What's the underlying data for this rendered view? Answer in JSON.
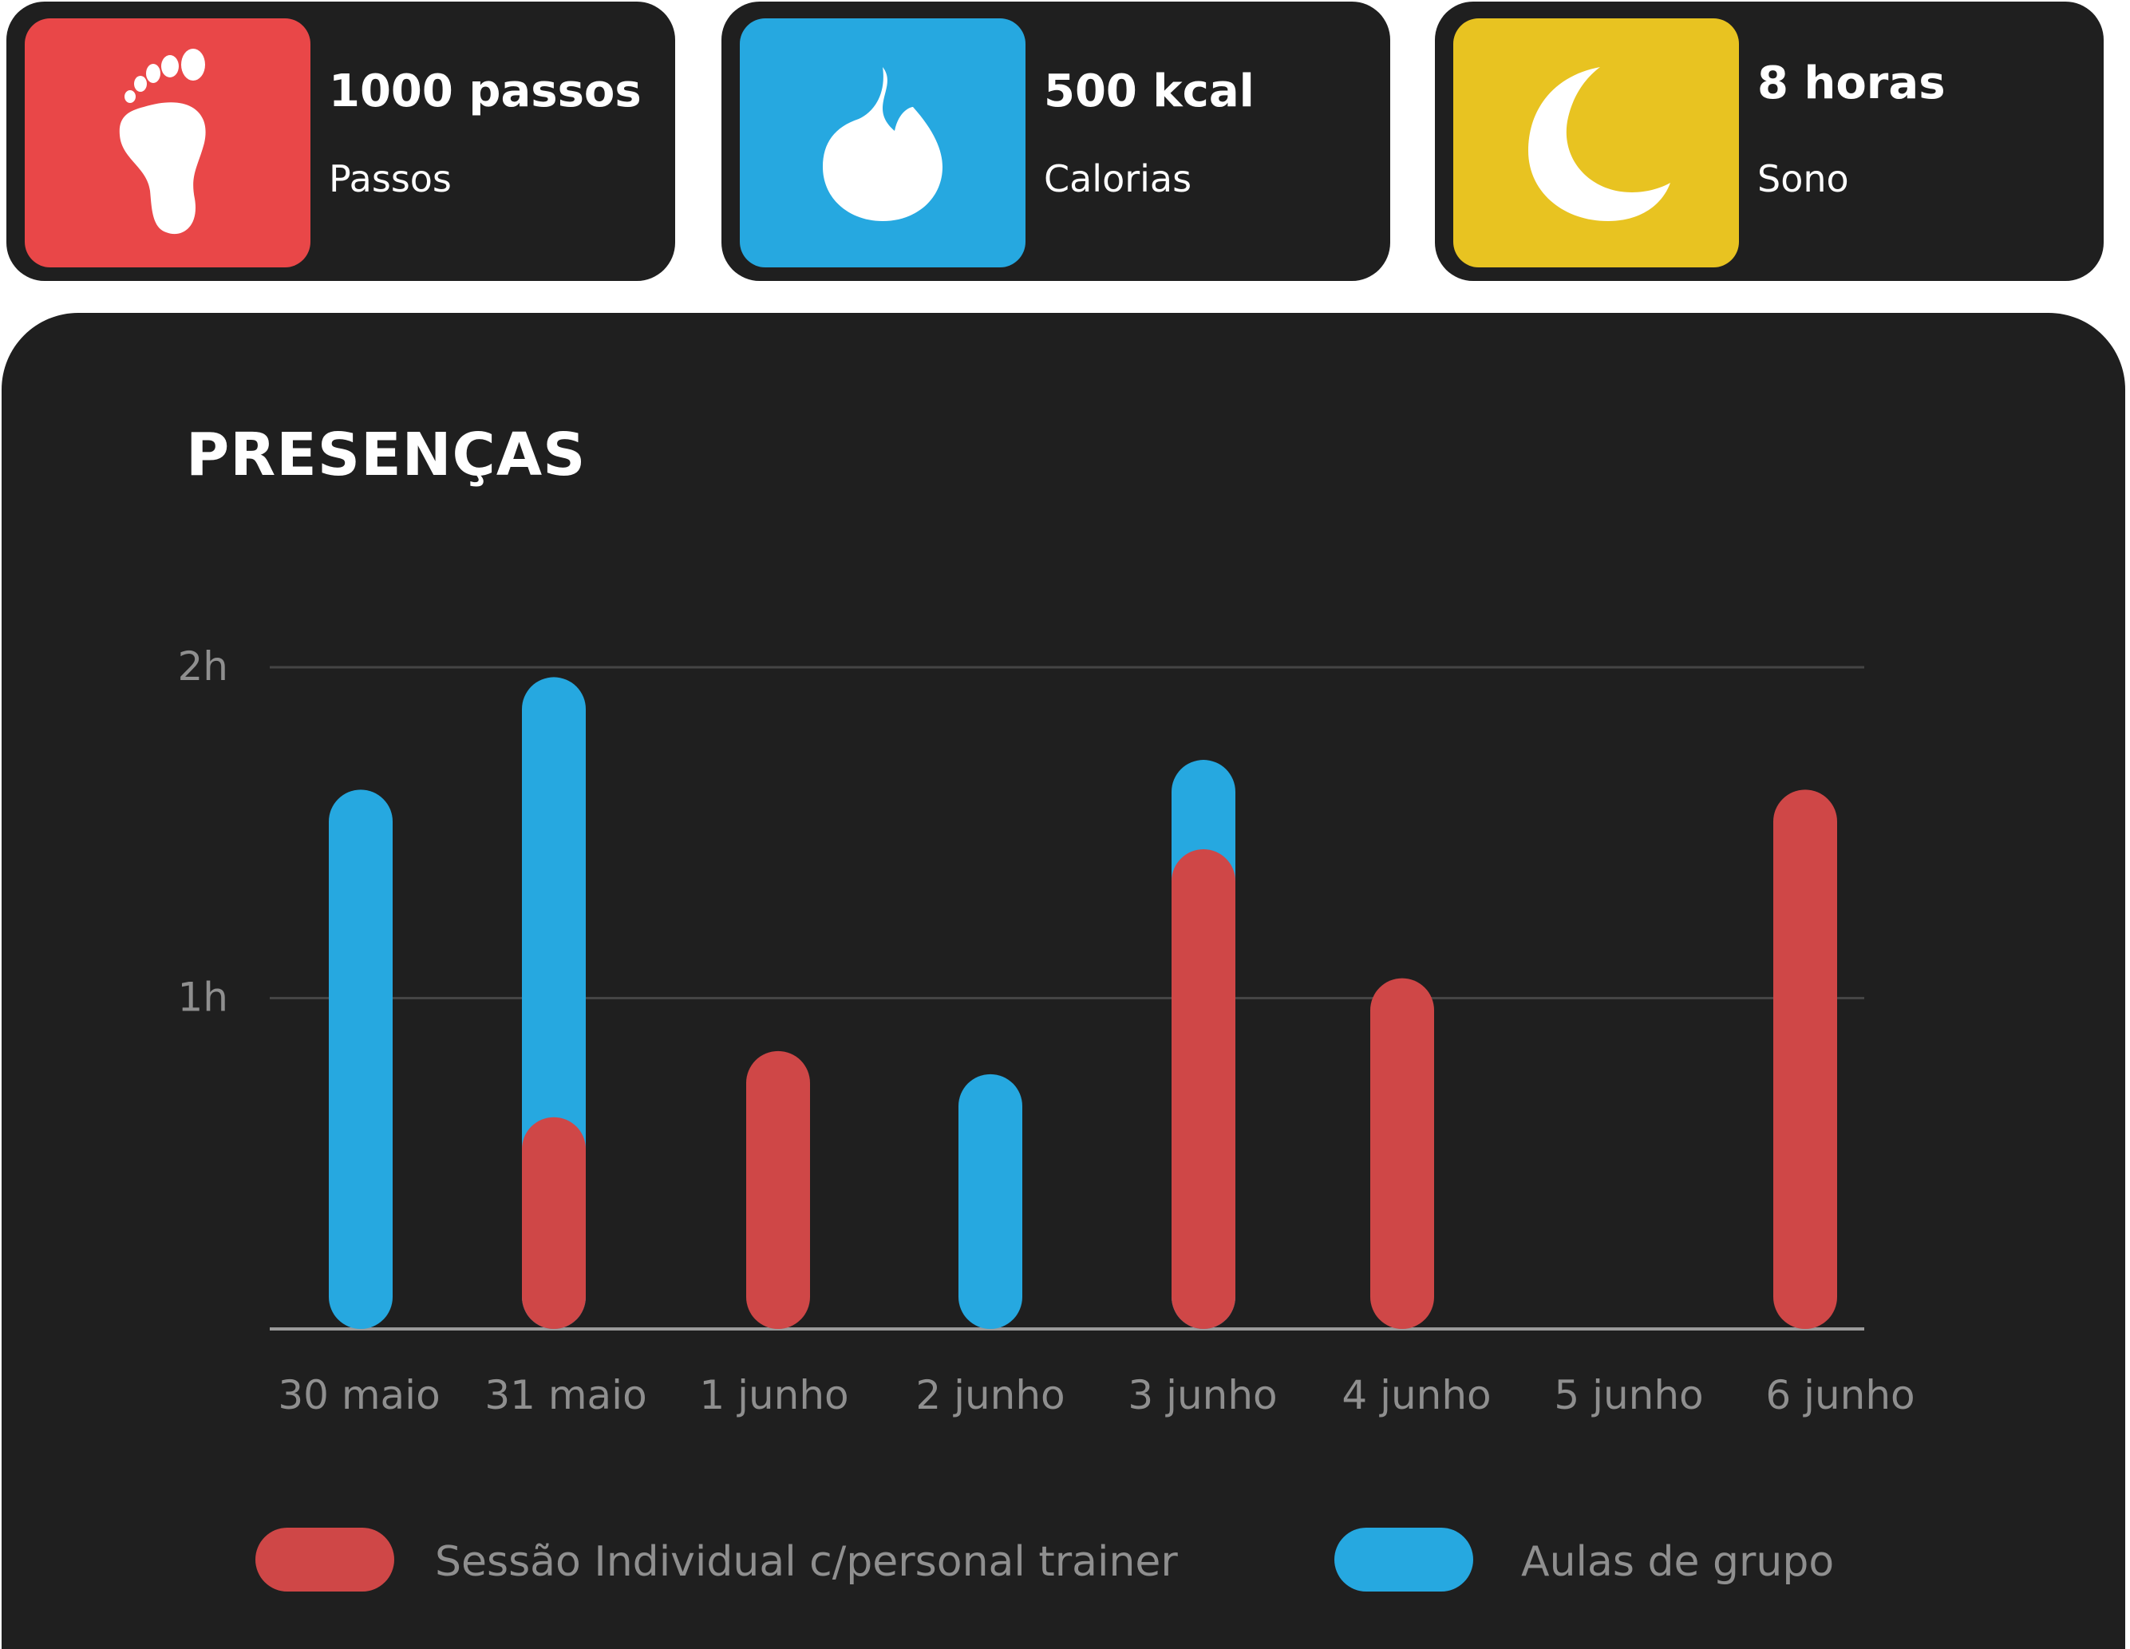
{
  "cards": [
    {
      "value": "1000 passos",
      "label": "Passos",
      "color": "#e94748",
      "icon": "footprint-icon"
    },
    {
      "value": "500 kcal",
      "label": "Calorias",
      "color": "#26a8e0",
      "icon": "flame-icon"
    },
    {
      "value": "8 horas",
      "label": "Sono",
      "color": "#e8c321",
      "icon": "moon-icon"
    }
  ],
  "chart_data": {
    "type": "bar",
    "title": "PRESENÇAS",
    "categories": [
      "30 maio",
      "31 maio",
      "1 junho",
      "2 junho",
      "3 junho",
      "4 junho",
      "5 junho",
      "6 junho"
    ],
    "yticks": [
      {
        "value": 2,
        "label": "2h"
      },
      {
        "value": 1,
        "label": "1h"
      }
    ],
    "ylim": [
      0,
      2
    ],
    "series": [
      {
        "name": "Aulas de grupo",
        "color": "#26a8e0",
        "values": [
          1.63,
          1.97,
          0,
          0.77,
          1.72,
          0,
          0,
          0
        ]
      },
      {
        "name": "Sessão Individual c/personal trainer",
        "color": "#cf4747",
        "values": [
          0,
          0.64,
          0.84,
          0,
          1.45,
          1.06,
          0,
          1.63
        ]
      }
    ],
    "legend_order": [
      1,
      0
    ],
    "legend_position": "bottom",
    "grid": true,
    "bar_style": "overlapping rounded pills"
  }
}
